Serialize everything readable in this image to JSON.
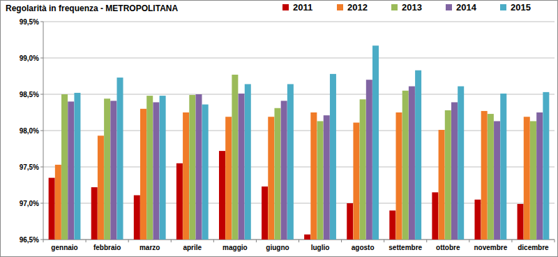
{
  "chart_data": {
    "type": "bar",
    "title": "Regolarità in frequenza - METROPOLITANA",
    "categories": [
      "gennaio",
      "febbraio",
      "marzo",
      "aprile",
      "maggio",
      "giugno",
      "luglio",
      "agosto",
      "settembre",
      "ottobre",
      "novembre",
      "dicembre"
    ],
    "series": [
      {
        "name": "2011",
        "color": "#c00000",
        "values": [
          97.35,
          97.22,
          97.11,
          97.55,
          97.72,
          97.23,
          96.57,
          97.0,
          96.9,
          97.15,
          97.05,
          96.99
        ]
      },
      {
        "name": "2012",
        "color": "#f07b28",
        "values": [
          97.53,
          97.93,
          98.3,
          98.25,
          98.19,
          98.19,
          98.25,
          98.11,
          98.25,
          98.01,
          98.27,
          98.19
        ]
      },
      {
        "name": "2013",
        "color": "#9bbb59",
        "values": [
          98.5,
          98.44,
          98.48,
          98.49,
          98.77,
          98.31,
          98.13,
          98.43,
          98.55,
          98.28,
          98.23,
          98.13
        ]
      },
      {
        "name": "2014",
        "color": "#8064a2",
        "values": [
          98.4,
          98.41,
          98.39,
          98.5,
          98.51,
          98.41,
          98.21,
          98.7,
          98.61,
          98.39,
          98.13,
          98.25
        ]
      },
      {
        "name": "2015",
        "color": "#4bacc6",
        "values": [
          98.52,
          98.73,
          98.48,
          98.36,
          98.64,
          98.64,
          98.78,
          99.17,
          98.83,
          98.61,
          98.51,
          98.53
        ]
      }
    ],
    "ylim": [
      96.5,
      99.5
    ],
    "yticks": [
      {
        "value": 96.5,
        "label": "96,5%"
      },
      {
        "value": 97.0,
        "label": "97,0%"
      },
      {
        "value": 97.5,
        "label": "97,5%"
      },
      {
        "value": 98.0,
        "label": "98,0%"
      },
      {
        "value": 98.5,
        "label": "98,5%"
      },
      {
        "value": 99.0,
        "label": "99,0%"
      },
      {
        "value": 99.5,
        "label": "99,5%"
      }
    ],
    "grid": true,
    "legend": "top-right"
  }
}
